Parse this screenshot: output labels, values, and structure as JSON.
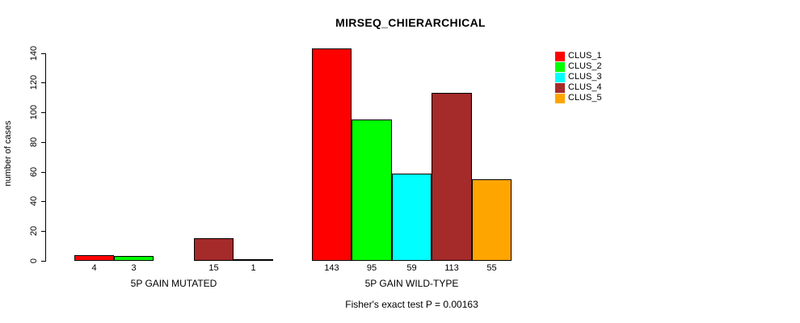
{
  "title": "MIRSEQ_CHIERARCHICAL",
  "chart_data": {
    "type": "bar",
    "title": "MIRSEQ_CHIERARCHICAL",
    "ylabel": "number of cases",
    "xlabel": "",
    "ylim": [
      0,
      140
    ],
    "yticks": [
      0,
      20,
      40,
      60,
      80,
      100,
      120,
      140
    ],
    "grid": false,
    "legend_position": "right",
    "legend": [
      {
        "label": "CLUS_1",
        "color": "#FF0000"
      },
      {
        "label": "CLUS_2",
        "color": "#00FF00"
      },
      {
        "label": "CLUS_3",
        "color": "#00FFFF"
      },
      {
        "label": "CLUS_4",
        "color": "#A52A2A"
      },
      {
        "label": "CLUS_5",
        "color": "#FFA500"
      }
    ],
    "groups": [
      {
        "xlabel": "5P GAIN MUTATED",
        "series": [
          "CLUS_1",
          "CLUS_2",
          "CLUS_3",
          "CLUS_4",
          "CLUS_5"
        ],
        "values": [
          4,
          3,
          0,
          15,
          1
        ],
        "bar_labels": [
          "4",
          "3",
          "",
          "15",
          "1"
        ]
      },
      {
        "xlabel": "5P GAIN WILD-TYPE",
        "series": [
          "CLUS_1",
          "CLUS_2",
          "CLUS_3",
          "CLUS_4",
          "CLUS_5"
        ],
        "values": [
          143,
          95,
          59,
          113,
          55
        ],
        "bar_labels": [
          "143",
          "95",
          "59",
          "113",
          "55"
        ]
      }
    ],
    "note": "Fisher's exact test P = 0.00163"
  },
  "colors": {
    "background": "#FFFFFF",
    "axis": "#000000",
    "text": "#000000"
  }
}
